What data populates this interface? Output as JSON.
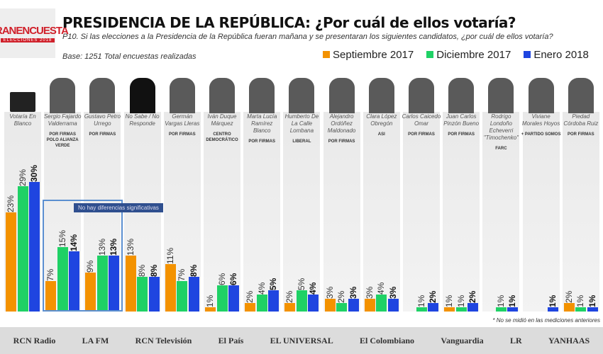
{
  "header": {
    "logo_text": "GRANENCUESTA",
    "logo_sub": "ELECCIONES 2018",
    "title": "PRESIDENCIA DE LA REPÚBLICA: ¿Por cuál de ellos votaría?",
    "question": "P10. Si las elecciones a la Presidencia de la República fueran mañana y se presentaran los siguientes candidatos, ¿por cuál de ellos votaría?",
    "base": "Base: 1251 Total encuestas realizadas"
  },
  "annotation": "No hay diferencias significativas",
  "footnote": "* No se midió en las mediciones anteriores",
  "footer_logos": [
    "RCN Radio",
    "LA FM",
    "RCN Televisión",
    "El País",
    "EL UNIVERSAL",
    "El Colombiano",
    "Vanguardia",
    "LR",
    "YANHAAS"
  ],
  "chart_data": {
    "type": "bar",
    "title": "PRESIDENCIA DE LA REPÚBLICA: ¿Por cuál de ellos votaría?",
    "ylabel": "%",
    "ylim": [
      0,
      30
    ],
    "grid": false,
    "legend": "top-right",
    "categories": [
      "Votaría En Blanco",
      "Sergio Fajardo Valderrama",
      "Gustavo Petro Urrego",
      "No Sabe / No Responde",
      "Germán Vargas Lleras",
      "Iván Duque Márquez",
      "Marta Lucía Ramírez Blanco",
      "Humberto De La Calle Lombana",
      "Alejandro Ordóñez Maldonado",
      "Clara López Obregón",
      "Carlos Caicedo Omar",
      "Juan Carlos Pinzón Bueno",
      "Rodrigo Londoño Echeverri \"Timochenko\"",
      "Viviane Morales Hoyos",
      "Piedad Córdoba Ruiz"
    ],
    "parties": [
      "",
      "POR FIRMAS POLO ALIANZA VERDE",
      "POR FIRMAS",
      "",
      "POR FIRMAS",
      "CENTRO DEMOCRÁTICO",
      "POR FIRMAS",
      "LIBERAL",
      "POR FIRMAS",
      "ASI",
      "POR FIRMAS",
      "POR FIRMAS",
      "FARC",
      "+ PARTIDO SOMOS",
      "POR FIRMAS"
    ],
    "series": [
      {
        "name": "Septiembre 2017",
        "color": "#f39200",
        "values": [
          23,
          7,
          9,
          13,
          11,
          1,
          2,
          2,
          3,
          3,
          null,
          1,
          null,
          null,
          2
        ]
      },
      {
        "name": "Diciembre 2017",
        "color": "#1fd165",
        "values": [
          29,
          15,
          13,
          8,
          7,
          6,
          4,
          5,
          2,
          4,
          1,
          1,
          1,
          null,
          1
        ]
      },
      {
        "name": "Enero 2018",
        "color": "#1f45e0",
        "values": [
          30,
          14,
          13,
          8,
          8,
          6,
          5,
          4,
          3,
          3,
          2,
          2,
          1,
          1,
          1
        ]
      }
    ]
  }
}
